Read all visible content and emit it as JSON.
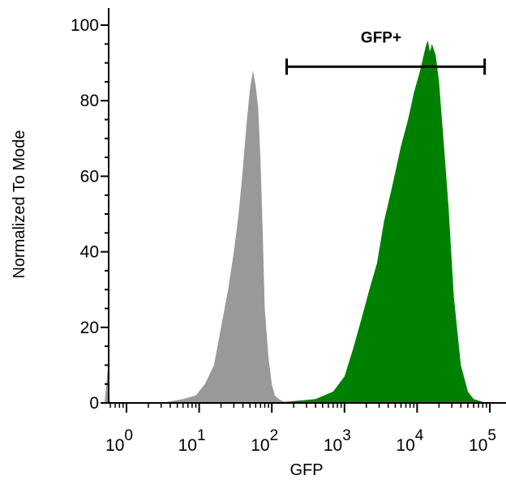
{
  "chart_data": {
    "type": "area",
    "title": "",
    "xlabel": "GFP",
    "ylabel": "Normalized To Mode",
    "xscale": "log",
    "xlim": [
      0.5,
      100000
    ],
    "ylim": [
      0,
      100
    ],
    "yticks": [
      0,
      20,
      40,
      60,
      80,
      100
    ],
    "xticks": [
      {
        "value": 1,
        "base": "10",
        "exp": "0"
      },
      {
        "value": 10,
        "base": "10",
        "exp": "1"
      },
      {
        "value": 100,
        "base": "10",
        "exp": "2"
      },
      {
        "value": 1000,
        "base": "10",
        "exp": "3"
      },
      {
        "value": 10000,
        "base": "10",
        "exp": "4"
      },
      {
        "value": 100000,
        "base": "10",
        "exp": "5"
      }
    ],
    "grid": false,
    "legend": "none",
    "series": [
      {
        "color": "#999999",
        "x": [
          0.5,
          0.52,
          0.55,
          0.6,
          1,
          3,
          6,
          9,
          12,
          16,
          20,
          25,
          30,
          35,
          40,
          45,
          50,
          55,
          60,
          65,
          70,
          75,
          80,
          90,
          100,
          110,
          125,
          140,
          160,
          200
        ],
        "y": [
          14,
          6,
          1,
          0,
          0,
          0,
          1,
          2,
          5,
          10,
          20,
          30,
          40,
          50,
          62,
          74,
          83,
          88,
          84,
          78,
          64,
          45,
          25,
          12,
          5,
          2,
          1,
          0.5,
          0,
          0
        ]
      },
      {
        "color": "#008000",
        "x": [
          100,
          200,
          400,
          700,
          1000,
          1300,
          1700,
          2200,
          2800,
          3500,
          4500,
          6000,
          7500,
          9000,
          11000,
          13000,
          14000,
          15000,
          16000,
          18000,
          20000,
          23000,
          27000,
          32000,
          40000,
          50000,
          60000,
          80000,
          100000
        ],
        "y": [
          0,
          0.5,
          1,
          3,
          7,
          14,
          22,
          30,
          37,
          48,
          57,
          68,
          75,
          82,
          88,
          94,
          96,
          93,
          95,
          92,
          85,
          70,
          52,
          28,
          10,
          3,
          1,
          0.3,
          0
        ]
      }
    ],
    "gate": {
      "label": "GFP+",
      "x_start": 160,
      "x_end": 85000,
      "y": 89
    }
  }
}
